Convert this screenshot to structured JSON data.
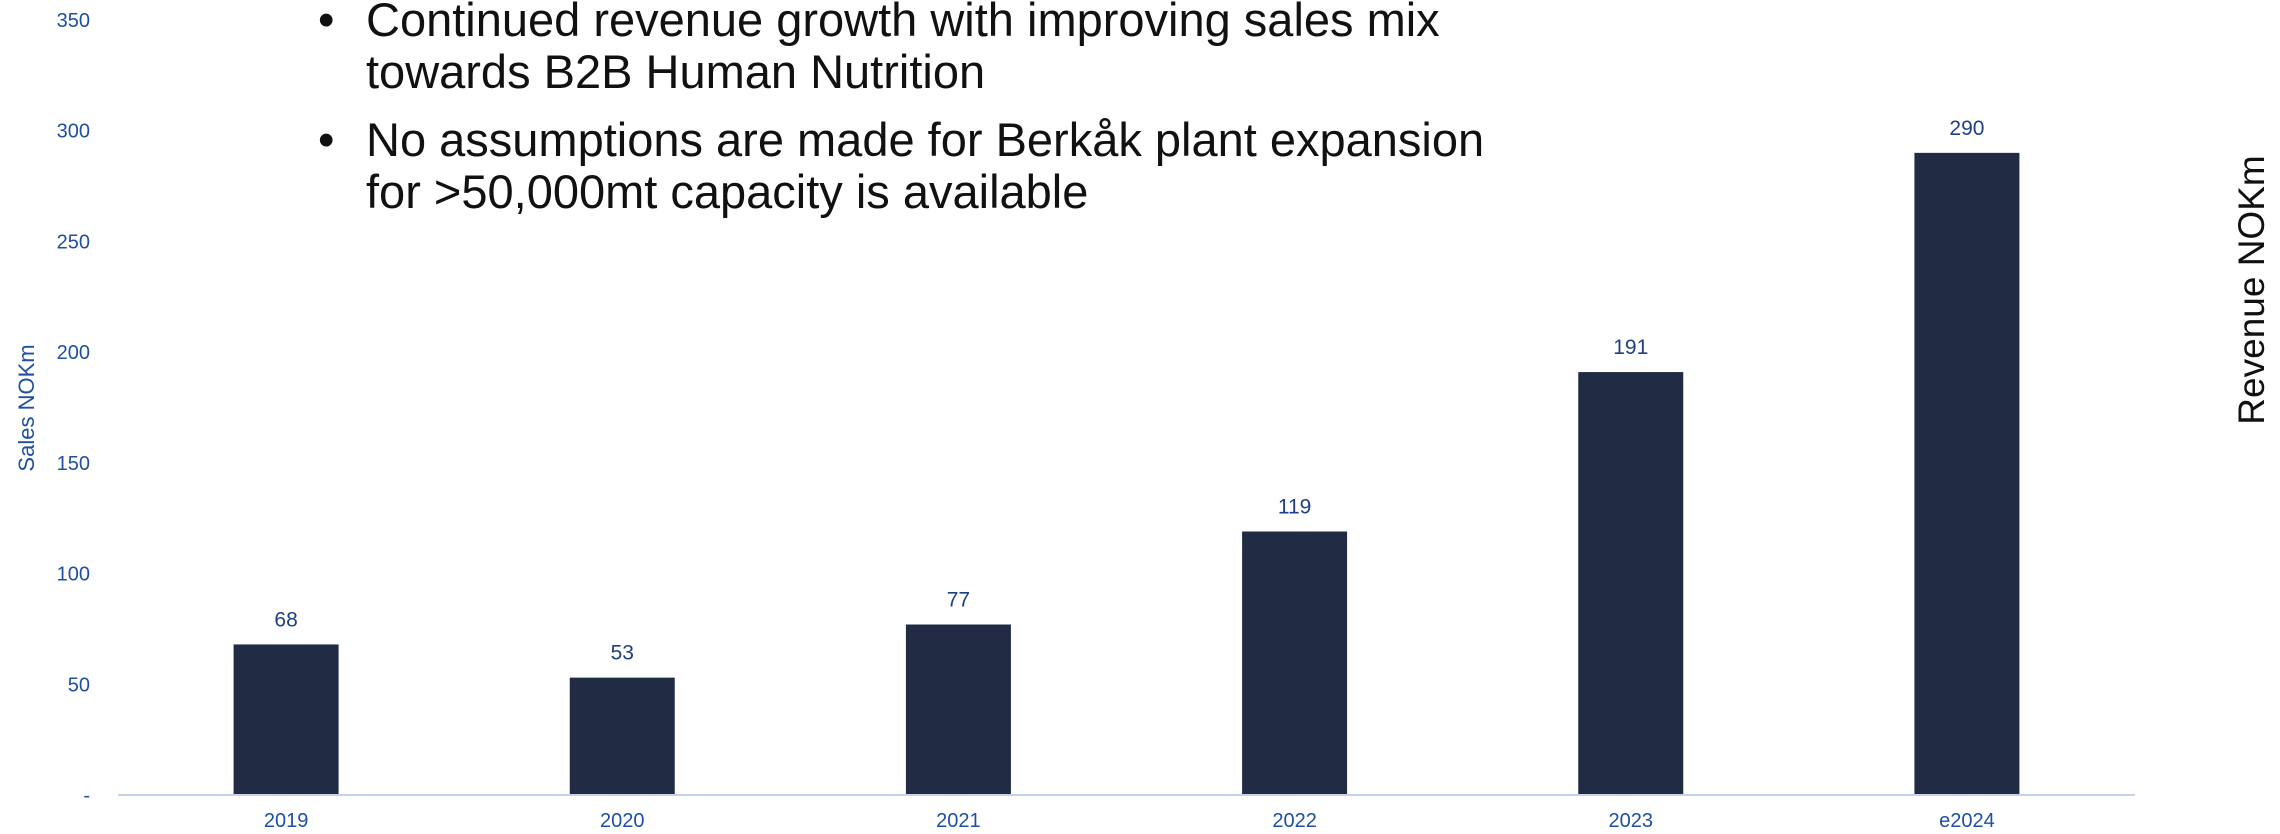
{
  "bullets": [
    {
      "line1": "Continued revenue growth with improving sales mix",
      "line2": "towards B2B Human Nutrition"
    },
    {
      "line1": "No assumptions are made for Berkåk plant expansion",
      "line2": "for >50,000mt capacity is available"
    }
  ],
  "bullet_symbol": "•",
  "chart_data": {
    "type": "bar",
    "categories": [
      "2019",
      "2020",
      "2021",
      "2022",
      "2023",
      "e2024"
    ],
    "values": [
      68,
      53,
      77,
      119,
      191,
      290
    ],
    "data_labels": [
      "68",
      "53",
      "77",
      "119",
      "191",
      "290"
    ],
    "ylabel": "Sales NOKm",
    "right_label": "Revenue NOKm",
    "ylim": [
      0,
      350
    ],
    "yticks": [
      0,
      50,
      100,
      150,
      200,
      250,
      300,
      350
    ],
    "ytick_labels": [
      "-",
      "50",
      "100",
      "150",
      "200",
      "250",
      "300",
      "350"
    ],
    "grid": false,
    "colors": {
      "bar": "#212c44",
      "axis_text": "#1f4fa3",
      "data_label": "#1f3f85",
      "baseline": "#c5d3ea"
    }
  }
}
